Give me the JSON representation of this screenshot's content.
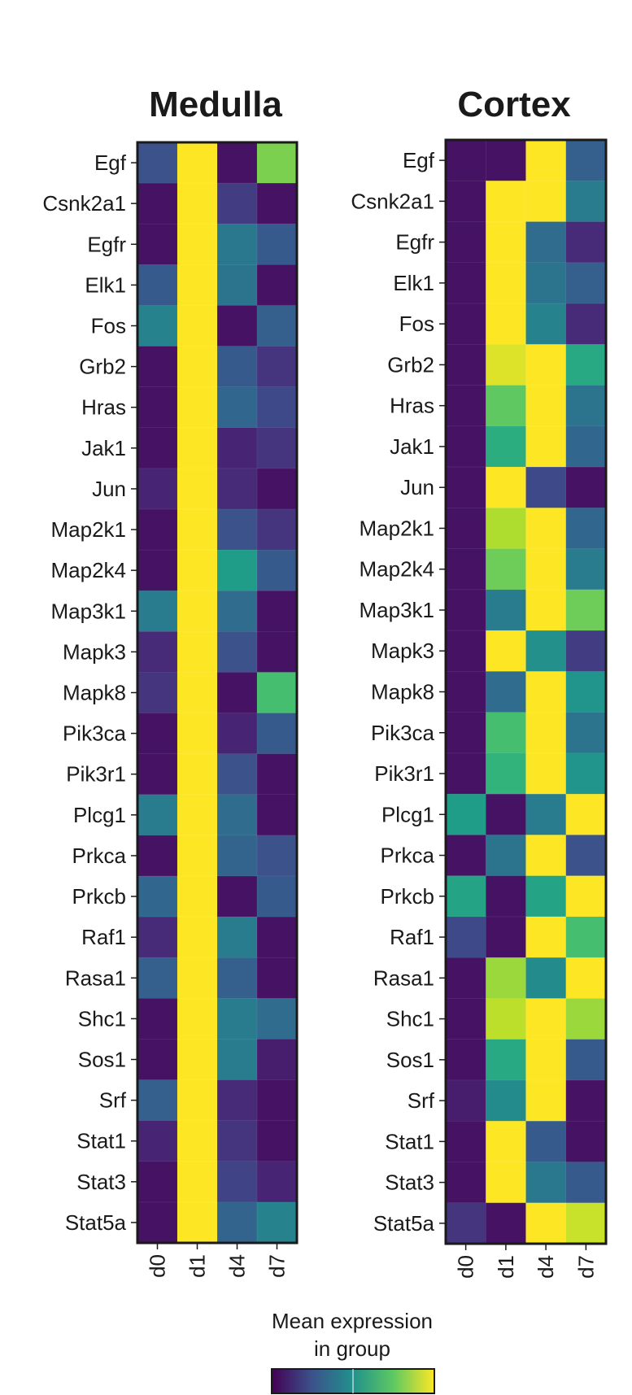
{
  "chart_data": [
    {
      "type": "heatmap",
      "title": "Medulla",
      "x": [
        "d0",
        "d1",
        "d4",
        "d7"
      ],
      "y": [
        "Egf",
        "Csnk2a1",
        "Egfr",
        "Elk1",
        "Fos",
        "Grb2",
        "Hras",
        "Jak1",
        "Jun",
        "Map2k1",
        "Map2k4",
        "Map3k1",
        "Mapk3",
        "Mapk8",
        "Pik3ca",
        "Pik3r1",
        "Plcg1",
        "Prkca",
        "Prkcb",
        "Raf1",
        "Rasa1",
        "Shc1",
        "Sos1",
        "Srf",
        "Stat1",
        "Stat3",
        "Stat5a"
      ],
      "values": [
        [
          0.25,
          1.0,
          0.05,
          0.8
        ],
        [
          0.05,
          1.0,
          0.18,
          0.05
        ],
        [
          0.05,
          1.0,
          0.4,
          0.28
        ],
        [
          0.28,
          1.0,
          0.38,
          0.05
        ],
        [
          0.45,
          1.0,
          0.05,
          0.3
        ],
        [
          0.05,
          1.0,
          0.28,
          0.15
        ],
        [
          0.05,
          1.0,
          0.33,
          0.22
        ],
        [
          0.05,
          1.0,
          0.1,
          0.15
        ],
        [
          0.1,
          1.0,
          0.12,
          0.05
        ],
        [
          0.05,
          1.0,
          0.25,
          0.15
        ],
        [
          0.05,
          1.0,
          0.55,
          0.28
        ],
        [
          0.42,
          1.0,
          0.35,
          0.05
        ],
        [
          0.12,
          1.0,
          0.25,
          0.05
        ],
        [
          0.15,
          1.0,
          0.05,
          0.7
        ],
        [
          0.05,
          1.0,
          0.1,
          0.28
        ],
        [
          0.05,
          1.0,
          0.25,
          0.05
        ],
        [
          0.42,
          1.0,
          0.35,
          0.05
        ],
        [
          0.05,
          1.0,
          0.32,
          0.25
        ],
        [
          0.33,
          1.0,
          0.05,
          0.28
        ],
        [
          0.12,
          1.0,
          0.42,
          0.05
        ],
        [
          0.3,
          1.0,
          0.3,
          0.05
        ],
        [
          0.05,
          1.0,
          0.42,
          0.35
        ],
        [
          0.05,
          1.0,
          0.42,
          0.08
        ],
        [
          0.3,
          1.0,
          0.12,
          0.05
        ],
        [
          0.1,
          1.0,
          0.15,
          0.05
        ],
        [
          0.05,
          1.0,
          0.2,
          0.1
        ],
        [
          0.05,
          1.0,
          0.32,
          0.45
        ]
      ]
    },
    {
      "type": "heatmap",
      "title": "Cortex",
      "x": [
        "d0",
        "d1",
        "d4",
        "d7"
      ],
      "y": [
        "Egf",
        "Csnk2a1",
        "Egfr",
        "Elk1",
        "Fos",
        "Grb2",
        "Hras",
        "Jak1",
        "Jun",
        "Map2k1",
        "Map2k4",
        "Map3k1",
        "Mapk3",
        "Mapk8",
        "Pik3ca",
        "Pik3r1",
        "Plcg1",
        "Prkca",
        "Prkcb",
        "Raf1",
        "Rasa1",
        "Shc1",
        "Sos1",
        "Srf",
        "Stat1",
        "Stat3",
        "Stat5a"
      ],
      "values": [
        [
          0.05,
          0.05,
          1.0,
          0.3
        ],
        [
          0.05,
          1.0,
          1.0,
          0.42
        ],
        [
          0.05,
          1.0,
          0.35,
          0.12
        ],
        [
          0.05,
          1.0,
          0.38,
          0.3
        ],
        [
          0.05,
          1.0,
          0.45,
          0.12
        ],
        [
          0.05,
          0.95,
          1.0,
          0.6
        ],
        [
          0.05,
          0.75,
          1.0,
          0.38
        ],
        [
          0.05,
          0.62,
          1.0,
          0.33
        ],
        [
          0.05,
          1.0,
          0.22,
          0.05
        ],
        [
          0.05,
          0.88,
          1.0,
          0.33
        ],
        [
          0.05,
          0.78,
          1.0,
          0.42
        ],
        [
          0.05,
          0.42,
          1.0,
          0.78
        ],
        [
          0.05,
          1.0,
          0.5,
          0.18
        ],
        [
          0.05,
          0.35,
          1.0,
          0.52
        ],
        [
          0.05,
          0.7,
          1.0,
          0.38
        ],
        [
          0.05,
          0.65,
          1.0,
          0.52
        ],
        [
          0.55,
          0.05,
          0.42,
          1.0
        ],
        [
          0.05,
          0.38,
          1.0,
          0.25
        ],
        [
          0.58,
          0.05,
          0.58,
          1.0
        ],
        [
          0.22,
          0.05,
          1.0,
          0.7
        ],
        [
          0.05,
          0.85,
          0.48,
          1.0
        ],
        [
          0.05,
          0.9,
          1.0,
          0.85
        ],
        [
          0.05,
          0.6,
          1.0,
          0.28
        ],
        [
          0.08,
          0.48,
          1.0,
          0.05
        ],
        [
          0.05,
          1.0,
          0.28,
          0.05
        ],
        [
          0.05,
          1.0,
          0.4,
          0.28
        ],
        [
          0.15,
          0.05,
          1.0,
          0.92
        ]
      ]
    }
  ],
  "colorbar": {
    "label_line1": "Mean expression",
    "label_line2": "in group",
    "colormap": "viridis"
  }
}
